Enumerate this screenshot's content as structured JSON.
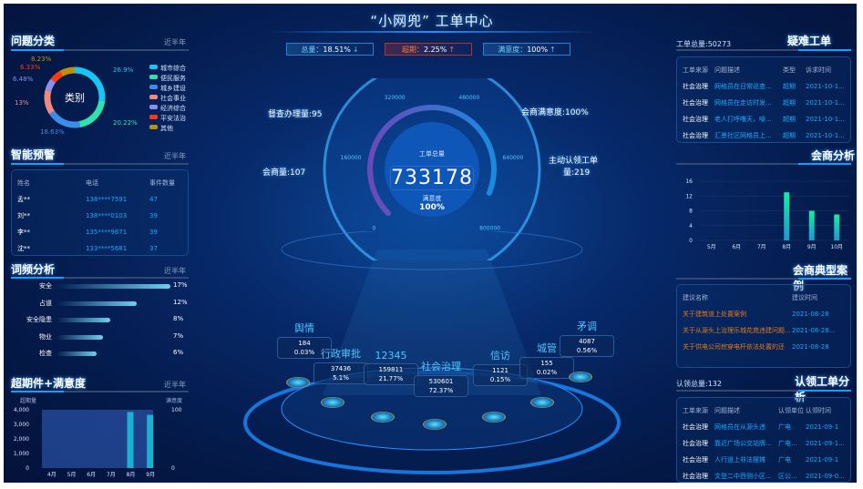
{
  "header": {
    "title": "“小网兜” 工单中心",
    "kpis": [
      {
        "label": "总量：",
        "value": "18.51%",
        "arrow": "↓",
        "color": "#2a7fd0"
      },
      {
        "label": "超期：",
        "value": "2.25%",
        "arrow": "↑",
        "color": "#c0302a"
      },
      {
        "label": "满意度：",
        "value": "100%",
        "arrow": "↑",
        "color": "#2a7fd0"
      }
    ]
  },
  "left": {
    "category": {
      "title": "问题分类",
      "sub": "近半年",
      "center": "类别",
      "slices": [
        {
          "name": "城市综合",
          "value": 26.9,
          "label": "26.9%",
          "color": "#14c8f5"
        },
        {
          "name": "便民服务",
          "value": 20.22,
          "label": "20.22%",
          "color": "#2fe0b0"
        },
        {
          "name": "城乡建设",
          "value": 18.63,
          "label": "18.63%",
          "color": "#3a8ee8"
        },
        {
          "name": "社会事业",
          "value": 13.21,
          "label": "13%",
          "color": "#f08a80"
        },
        {
          "name": "经济综合",
          "value": 6.48,
          "label": "6.48%",
          "color": "#8a90f0"
        },
        {
          "name": "平安法治",
          "value": 6.33,
          "label": "6.33%",
          "color": "#ff3a10"
        },
        {
          "name": "其他",
          "value": 8.23,
          "label": "8.23%",
          "color": "#c0900a"
        }
      ]
    },
    "warning": {
      "title": "智能预警",
      "sub": "近半年",
      "headers": [
        "姓名",
        "电话",
        "事件数量"
      ],
      "rows": [
        [
          "孟**",
          "138****7591",
          "47"
        ],
        [
          "刘**",
          "138****0103",
          "39"
        ],
        [
          "李**",
          "135****9671",
          "39"
        ],
        [
          "沈**",
          "133****5681",
          "37"
        ]
      ]
    },
    "words": {
      "title": "词频分析",
      "sub": "近半年",
      "items": [
        {
          "name": "安全",
          "value": 17,
          "label": "17%"
        },
        {
          "name": "占道",
          "value": 12,
          "label": "12%"
        },
        {
          "name": "安全隐患",
          "value": 8,
          "label": "8%"
        },
        {
          "name": "物业",
          "value": 7,
          "label": "7%"
        },
        {
          "name": "检查",
          "value": 6,
          "label": "6%"
        }
      ]
    },
    "overdue": {
      "title": "超期件+满意度",
      "sub": "近半年"
    }
  },
  "chart_data": [
    {
      "type": "bar",
      "title": "超期件+满意度",
      "ylabel": "超期量",
      "y2label": "满意度",
      "categories": [
        "4月",
        "5月",
        "6月",
        "7月",
        "8月",
        "9月"
      ],
      "ylim": [
        0,
        4000
      ],
      "yticks": [
        "0",
        "1,000",
        "2,000",
        "3,000",
        "4,000"
      ],
      "y2lim": [
        0,
        100
      ],
      "y2ticks": [
        "0",
        "100"
      ],
      "series": [
        {
          "name": "超期量",
          "type": "bar",
          "values": [
            0,
            0,
            0,
            0,
            3850,
            3650
          ]
        },
        {
          "name": "满意度",
          "type": "area",
          "values": [
            100,
            100,
            100,
            100,
            100,
            100
          ]
        }
      ]
    },
    {
      "type": "bar",
      "title": "会商分析",
      "categories": [
        "5月",
        "6月",
        "7月",
        "8月",
        "9月",
        "10月"
      ],
      "ylim": [
        0,
        16
      ],
      "yticks": [
        "0",
        "4",
        "8",
        "12",
        "16"
      ],
      "values": [
        0,
        0,
        0,
        13,
        8,
        7
      ]
    },
    {
      "type": "gauge",
      "title": "工单总量",
      "value": 733178,
      "range": [
        0,
        800000
      ],
      "ticks": [
        "0",
        "160000",
        "320000",
        "480000",
        "640000",
        "800000"
      ],
      "sub_label": "满意度",
      "sub_value": "100%"
    }
  ],
  "center": {
    "callouts": [
      {
        "text": "督查办理量:95"
      },
      {
        "text": "会商满意度:100%"
      },
      {
        "text": "会商量:107"
      },
      {
        "text": "主动认领工单"
      },
      {
        "text": "量:219"
      }
    ],
    "gauge_label": "工单总量",
    "gauge_value": "733178",
    "sat_label": "满意度",
    "sat_value": "100%",
    "categories": [
      {
        "name": "舆情",
        "count": "184",
        "pct": "0.03%"
      },
      {
        "name": "行政审批",
        "count": "37436",
        "pct": "5.1%"
      },
      {
        "name": "12345",
        "count": "159811",
        "pct": "21.77%"
      },
      {
        "name": "社会治理",
        "count": "530601",
        "pct": "72.37%"
      },
      {
        "name": "信访",
        "count": "1121",
        "pct": "0.15%"
      },
      {
        "name": "城管",
        "count": "155",
        "pct": "0.02%"
      },
      {
        "name": "矛调",
        "count": "4087",
        "pct": "0.56%"
      }
    ]
  },
  "right": {
    "hard": {
      "title": "疑难工单",
      "total": "工单总量:50273",
      "headers": [
        "工单来源",
        "问题描述",
        "类型",
        "诉求时间"
      ],
      "rows": [
        [
          "社会治理",
          "网格员在日常巡查...",
          "超期",
          "2021-10-1..."
        ],
        [
          "社会治理",
          "网格员在走访时发...",
          "超期",
          "2021-10-1..."
        ],
        [
          "社会治理",
          "老人打呼噜天，噪...",
          "超期",
          "2021-10-1..."
        ],
        [
          "社会治理",
          "汇景社区网格员上...",
          "超期",
          "2021-10-1..."
        ]
      ]
    },
    "consult": {
      "title": "会商分析"
    },
    "cases": {
      "title": "会商典型案例",
      "headers": [
        "建议名称",
        "建议时间"
      ],
      "rows": [
        [
          "关于建筑道上处置案例",
          "2021-08-28"
        ],
        [
          "关于从源头上治理乐城花苑违建问题...",
          "2021-08-28..."
        ],
        [
          "关于供电公司挖穿电杆依法处置的还",
          "2021-08-28"
        ]
      ]
    },
    "claim": {
      "title": "认领工单分析",
      "total": "认领总量:132",
      "headers": [
        "工单来源",
        "问题描述",
        "认领单位",
        "认领时间"
      ],
      "rows": [
        [
          "社会治理",
          "网格员在从源头违",
          "广电",
          "2021-09-1"
        ],
        [
          "社会治理",
          "靠近广场公交站牌...",
          "广电...",
          "2021-09-1..."
        ],
        [
          "社会治理",
          "人行道上非法摆摊",
          "广电",
          "2021-09-1"
        ],
        [
          "社会治理",
          "文登二中西侧小区...",
          "区公...",
          "2021-09-0..."
        ]
      ]
    }
  }
}
